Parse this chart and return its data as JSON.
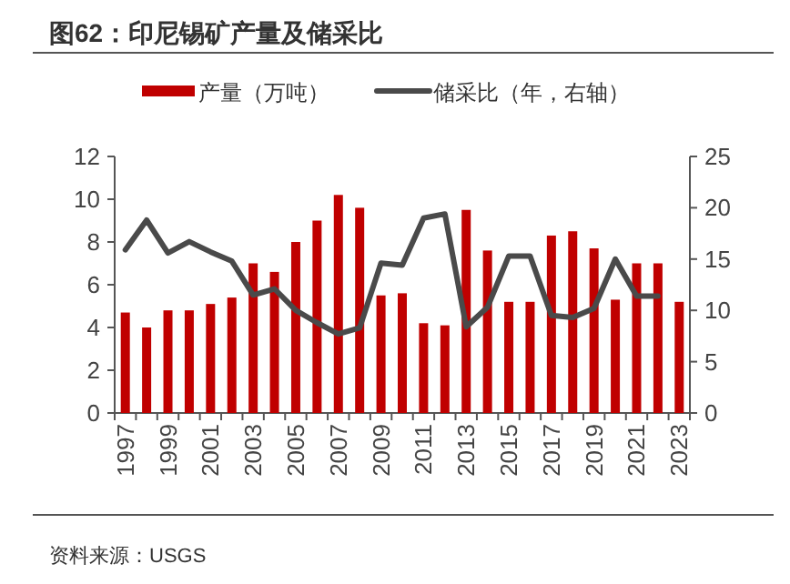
{
  "chart_data": {
    "type": "bar",
    "title": "图62：印尼锡矿产量及储采比",
    "categories": [
      "1997",
      null,
      "1999",
      null,
      "2001",
      null,
      "2003",
      null,
      "2005",
      null,
      "2007",
      null,
      "2009",
      null,
      "2011",
      null,
      "2013",
      null,
      "2015",
      null,
      "2017",
      null,
      "2019",
      null,
      "2021",
      null,
      "2023"
    ],
    "series": [
      {
        "name": "产量（万吨）",
        "color": "#c00000",
        "values": [
          4.7,
          4.0,
          4.8,
          4.8,
          5.1,
          5.4,
          7.0,
          6.6,
          8.0,
          9.0,
          10.2,
          9.6,
          5.5,
          5.6,
          4.2,
          4.1,
          9.5,
          7.6,
          5.2,
          5.2,
          8.3,
          8.5,
          7.7,
          5.3,
          7.0,
          7.0,
          5.2
        ]
      },
      {
        "name": "储采比（年，右轴）",
        "type": "line",
        "axis": "y2",
        "color": "#4a4a4a",
        "values": [
          15.9,
          18.8,
          15.6,
          16.7,
          15.7,
          14.8,
          11.5,
          12.1,
          10.0,
          8.8,
          7.7,
          8.3,
          14.6,
          14.4,
          19.0,
          19.4,
          8.4,
          10.3,
          15.3,
          15.3,
          9.5,
          9.3,
          10.2,
          15.0,
          11.4,
          11.4,
          null
        ]
      }
    ],
    "ylim": [
      0,
      12
    ],
    "yticks": [
      0,
      2,
      4,
      6,
      8,
      10,
      12
    ],
    "y2lim": [
      0,
      25
    ],
    "y2ticks": [
      0,
      5,
      10,
      15,
      20,
      25
    ],
    "grid": false,
    "legend": "top",
    "annotations": [
      "资料来源：USGS"
    ]
  }
}
